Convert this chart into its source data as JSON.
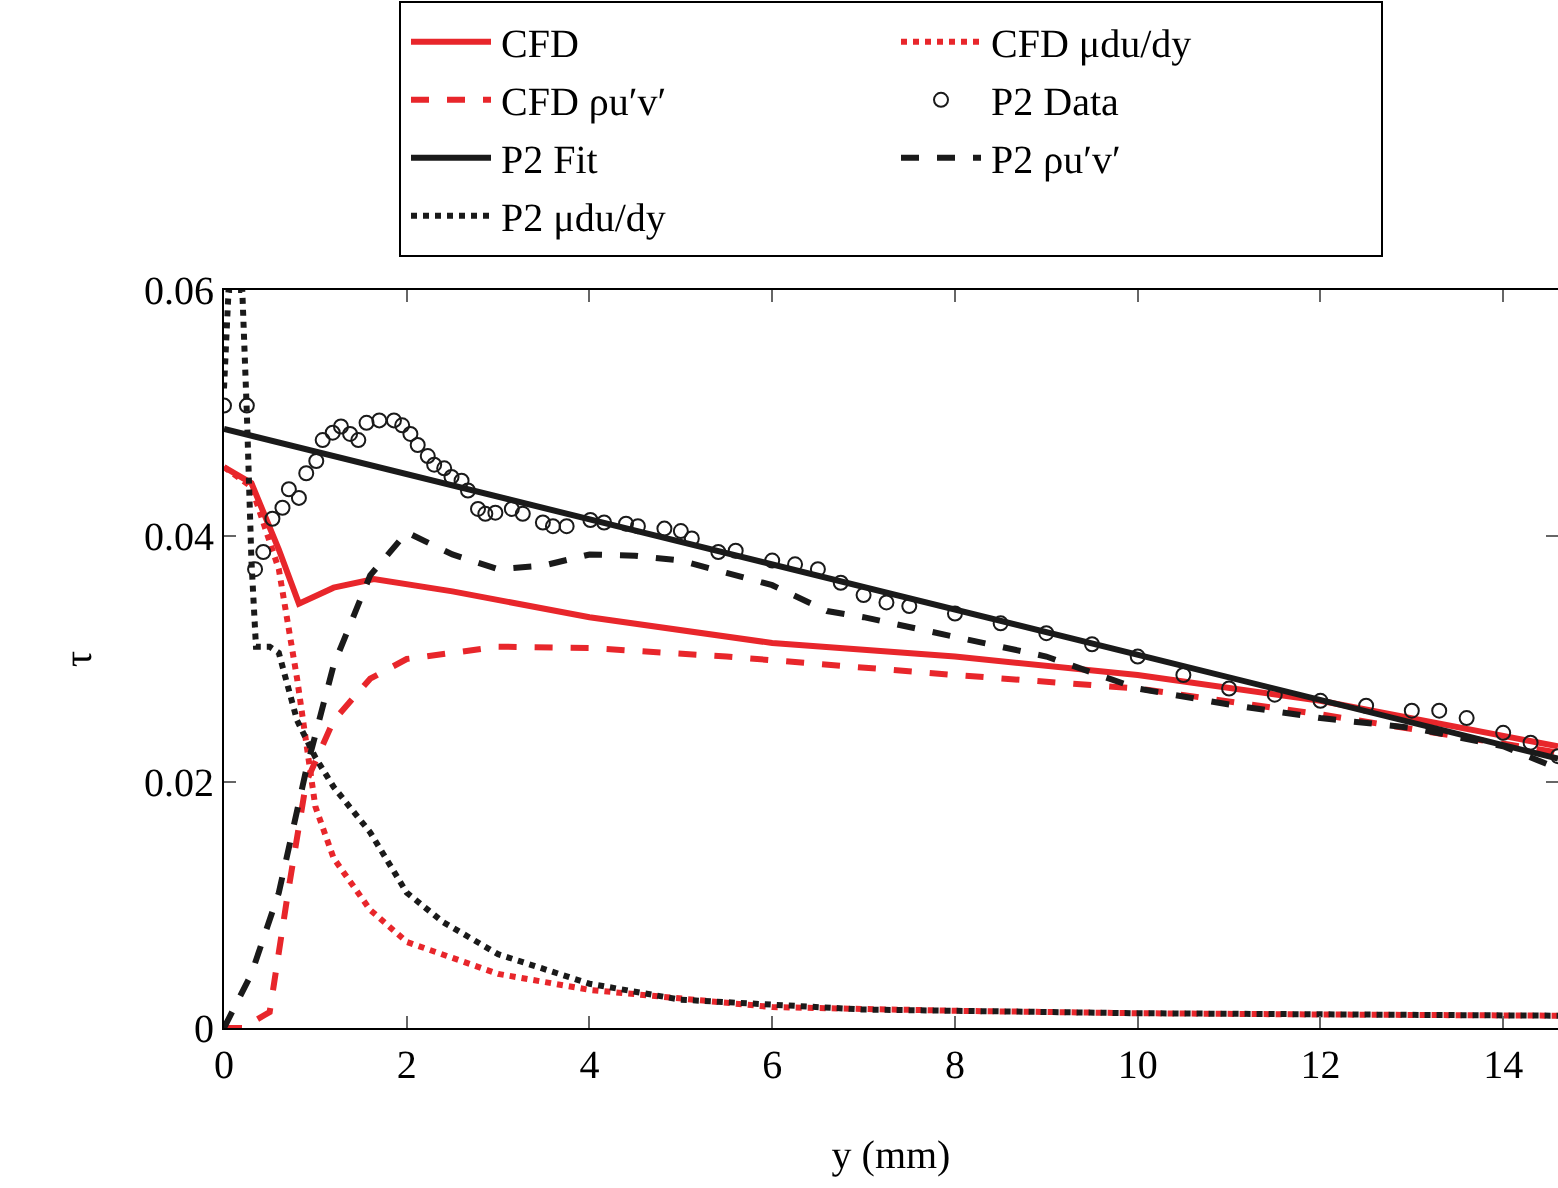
{
  "chart_data": {
    "type": "line",
    "xlabel": "y (mm)",
    "ylabel": "τ",
    "xlim": [
      0,
      14.6
    ],
    "ylim": [
      0,
      0.06
    ],
    "xticks": [
      0,
      2,
      4,
      6,
      8,
      10,
      12,
      14
    ],
    "yticks": [
      0,
      0.02,
      0.04,
      0.06
    ],
    "grid": false,
    "legend": "top",
    "marker": "none",
    "series": [
      {
        "name": "CFD",
        "color": "#e8262b",
        "line_style": "solid",
        "x": [
          0,
          0.3,
          0.6,
          0.82,
          1.2,
          1.64,
          2.5,
          4,
          6,
          8,
          10,
          12,
          14.6
        ],
        "values": [
          0.0456,
          0.0443,
          0.0389,
          0.0345,
          0.0358,
          0.0365,
          0.0355,
          0.0334,
          0.0313,
          0.0302,
          0.0287,
          0.0266,
          0.0229
        ]
      },
      {
        "name": "CFD μdu/dy",
        "color": "#e8262b",
        "line_style": "dotted",
        "x": [
          0,
          0.3,
          0.6,
          0.8,
          1,
          1.2,
          1.6,
          2,
          3,
          4,
          6,
          8,
          10,
          12,
          14.6
        ],
        "values": [
          0.0456,
          0.044,
          0.0373,
          0.0284,
          0.018,
          0.0138,
          0.0096,
          0.007,
          0.0044,
          0.0031,
          0.0017,
          0.0014,
          0.0012,
          0.0011,
          0.001
        ]
      },
      {
        "name": "CFD ρu′v′",
        "color": "#e8262b",
        "line_style": "dashed",
        "x": [
          0,
          0.2,
          0.5,
          0.7,
          0.9,
          1.2,
          1.6,
          2,
          3,
          4,
          5.5,
          8,
          10,
          12,
          14.6
        ],
        "values": [
          0,
          0,
          0.0013,
          0.011,
          0.02,
          0.025,
          0.0284,
          0.03,
          0.031,
          0.0309,
          0.0302,
          0.0287,
          0.0276,
          0.0255,
          0.0224
        ]
      },
      {
        "name": "P2 Data",
        "color": "#1a1a1a",
        "type": "scatter",
        "marker": "circle",
        "x": [
          0,
          0.25,
          0.34,
          0.43,
          0.53,
          0.64,
          0.71,
          0.82,
          0.9,
          1.01,
          1.08,
          1.19,
          1.28,
          1.38,
          1.47,
          1.56,
          1.7,
          1.86,
          1.95,
          2.04,
          2.12,
          2.23,
          2.3,
          2.41,
          2.49,
          2.6,
          2.67,
          2.78,
          2.86,
          2.97,
          3.15,
          3.27,
          3.49,
          3.6,
          3.75,
          4.01,
          4.16,
          4.4,
          4.53,
          4.82,
          5.0,
          5.12,
          5.41,
          5.6,
          6,
          6.25,
          6.5,
          6.75,
          7,
          7.25,
          7.5,
          8,
          8.5,
          9,
          9.5,
          10,
          10.5,
          11,
          11.5,
          12,
          12.5,
          13,
          13.3,
          13.6,
          14,
          14.3,
          14.6
        ],
        "values": [
          0.0506,
          0.0506,
          0.0373,
          0.0387,
          0.0414,
          0.0423,
          0.0438,
          0.0431,
          0.0451,
          0.0461,
          0.0478,
          0.0484,
          0.0489,
          0.0483,
          0.0478,
          0.0492,
          0.0494,
          0.0494,
          0.049,
          0.0483,
          0.0474,
          0.0465,
          0.0458,
          0.0455,
          0.0448,
          0.0445,
          0.0437,
          0.0422,
          0.0418,
          0.0419,
          0.0422,
          0.0418,
          0.0411,
          0.0408,
          0.0408,
          0.0413,
          0.0411,
          0.041,
          0.0408,
          0.0406,
          0.0404,
          0.0398,
          0.0387,
          0.0388,
          0.038,
          0.0377,
          0.0373,
          0.0362,
          0.0352,
          0.0346,
          0.0343,
          0.0337,
          0.0329,
          0.0321,
          0.0312,
          0.0302,
          0.0287,
          0.0276,
          0.0271,
          0.0266,
          0.0262,
          0.0258,
          0.0258,
          0.0252,
          0.024,
          0.0232,
          0.0221
        ]
      },
      {
        "name": "P2 Fit",
        "color": "#1a1a1a",
        "line_style": "solid",
        "x": [
          0,
          14.6
        ],
        "values": [
          0.0487,
          0.0219
        ]
      },
      {
        "name": "P2 ρu′v′",
        "color": "#1a1a1a",
        "line_style": "dashed",
        "x": [
          0,
          0.3,
          0.6,
          0.9,
          1.2,
          1.6,
          2,
          2.5,
          3,
          3.5,
          4,
          4.5,
          5,
          5.5,
          6,
          6.6,
          7,
          8,
          9,
          10,
          11,
          12,
          13,
          14,
          14.6
        ],
        "values": [
          0,
          0.0044,
          0.011,
          0.021,
          0.0295,
          0.0368,
          0.0403,
          0.0385,
          0.0373,
          0.0376,
          0.0385,
          0.0384,
          0.038,
          0.037,
          0.036,
          0.0339,
          0.0334,
          0.0318,
          0.0302,
          0.0276,
          0.0263,
          0.0252,
          0.0244,
          0.0229,
          0.0211
        ]
      },
      {
        "name": "P2 μdu/dy",
        "color": "#1a1a1a",
        "line_style": "dotted",
        "x": [
          0,
          0.05,
          0.2,
          0.25,
          0.3,
          0.35,
          0.5,
          0.6,
          0.8,
          1,
          1.2,
          1.6,
          2,
          2.4,
          3,
          4,
          5,
          7,
          10,
          14.6
        ],
        "values": [
          0.052,
          0.06,
          0.06,
          0.05,
          0.038,
          0.031,
          0.031,
          0.0305,
          0.025,
          0.022,
          0.0196,
          0.0159,
          0.011,
          0.0086,
          0.006,
          0.0036,
          0.0023,
          0.0015,
          0.0012,
          0.001
        ]
      }
    ]
  }
}
